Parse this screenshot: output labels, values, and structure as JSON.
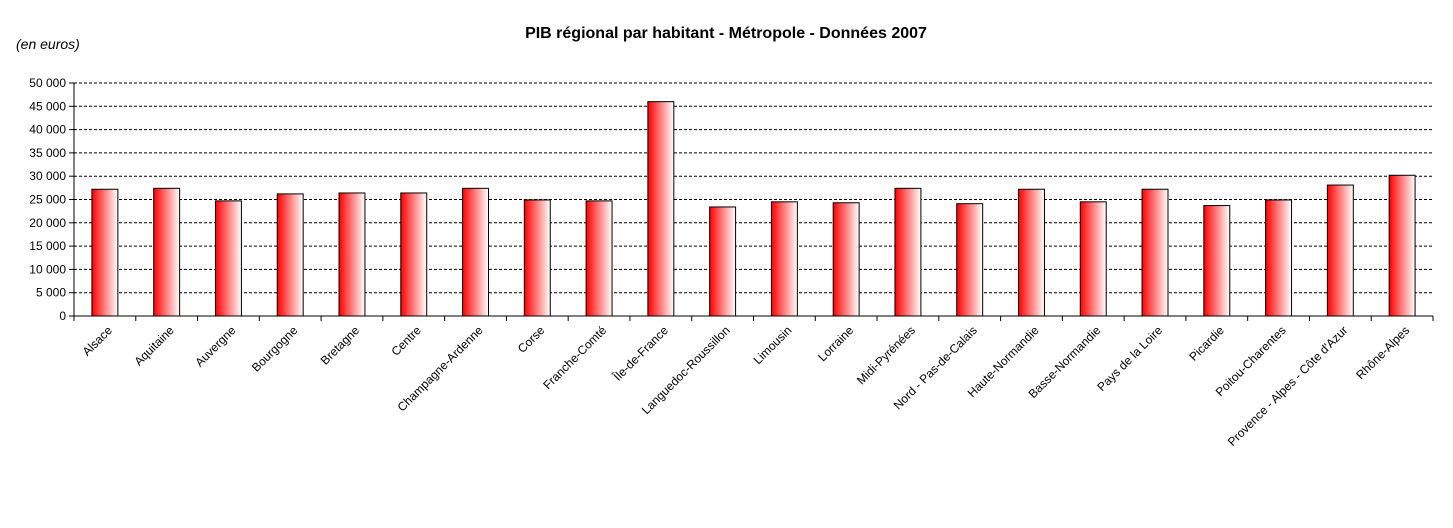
{
  "chart_data": {
    "type": "bar",
    "title": "PIB régional par habitant - Métropole - Données 2007",
    "unit_label": "(en euros)",
    "xlabel": "",
    "ylabel": "",
    "ylim": [
      0,
      50000
    ],
    "y_ticks": [
      0,
      5000,
      10000,
      15000,
      20000,
      25000,
      30000,
      35000,
      40000,
      45000,
      50000
    ],
    "y_tick_labels": [
      "0",
      "5 000",
      "10 000",
      "15 000",
      "20 000",
      "25 000",
      "30 000",
      "35 000",
      "40 000",
      "45 000",
      "50 000"
    ],
    "grid": true,
    "legend": "none",
    "colors": {
      "bar_dark": "#ff0000",
      "bar_light": "#ffffff",
      "bar_stroke": "#000000",
      "grid": "#000000"
    },
    "categories": [
      "Alsace",
      "Aquitaine",
      "Auvergne",
      "Bourgogne",
      "Bretagne",
      "Centre",
      "Champagne-Ardenne",
      "Corse",
      "Franche-Comté",
      "Île-de-France",
      "Languedoc-Roussillon",
      "Limousin",
      "Lorraine",
      "Midi-Pyrénées",
      "Nord - Pas-de-Calais",
      "Haute-Normandie",
      "Basse-Normandie",
      "Pays de la Loire",
      "Picardie",
      "Poitou-Charentes",
      "Provence - Alpes - Côte d'Azur",
      "Rhône-Alpes"
    ],
    "values": [
      27200,
      27400,
      24700,
      26200,
      26400,
      26400,
      27400,
      24900,
      24700,
      46000,
      23400,
      24500,
      24300,
      27400,
      24100,
      27200,
      24500,
      27200,
      23700,
      24900,
      28100,
      30200
    ]
  }
}
